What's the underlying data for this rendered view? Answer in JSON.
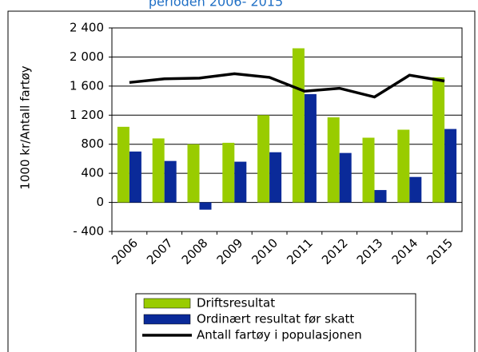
{
  "chart_data": {
    "type": "bar",
    "title": "perioden 2006- 2015",
    "y_label": "1000 kr/Antall fartøy",
    "categories": [
      "2006",
      "2007",
      "2008",
      "2009",
      "2010",
      "2011",
      "2012",
      "2013",
      "2014",
      "2015"
    ],
    "series": [
      {
        "name": "Driftsresultat",
        "type": "bar",
        "color": "#99cc00",
        "values": [
          1040,
          880,
          800,
          820,
          1200,
          2120,
          1170,
          890,
          1000,
          1720
        ]
      },
      {
        "name": "Ordinært resultat før skatt",
        "type": "bar",
        "color": "#0a2a99",
        "values": [
          700,
          570,
          -100,
          560,
          690,
          1490,
          680,
          170,
          350,
          1010
        ]
      },
      {
        "name": "Antall fartøy i populasjonen",
        "type": "line",
        "color": "#000000",
        "values": [
          1650,
          1700,
          1710,
          1770,
          1720,
          1530,
          1570,
          1450,
          1750,
          1670
        ]
      }
    ],
    "ylim": [
      -400,
      2400
    ],
    "yticks": [
      {
        "value": -400,
        "label": "- 400"
      },
      0,
      400,
      800,
      {
        "value": 1200,
        "label": "1 200"
      },
      {
        "value": 1600,
        "label": "1 600"
      },
      {
        "value": 2000,
        "label": "2 000"
      },
      {
        "value": 2400,
        "label": "2 400"
      }
    ],
    "grid": true,
    "legend": "bottom"
  }
}
